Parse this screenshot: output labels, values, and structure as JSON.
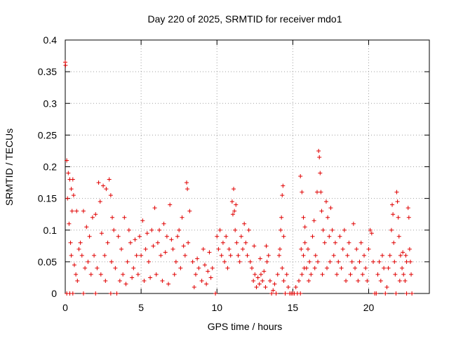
{
  "chart_data": {
    "type": "scatter",
    "title": "Day 220 of 2025, SRMTID for receiver mdo1",
    "xlabel": "GPS time / hours",
    "ylabel": "SRMTID / TECUs",
    "xlim": [
      0,
      24
    ],
    "ylim": [
      0,
      0.4
    ],
    "x_ticks": [
      0,
      5,
      10,
      15,
      20
    ],
    "x_tick_labels": [
      "0",
      "5",
      "10",
      "15",
      "20"
    ],
    "y_ticks": [
      0,
      0.05,
      0.1,
      0.15,
      0.2,
      0.25,
      0.3,
      0.35,
      0.4
    ],
    "y_tick_labels": [
      "0",
      "0.05",
      "0.1",
      "0.15",
      "0.2",
      "0.25",
      "0.3",
      "0.35",
      "0.4"
    ],
    "grid": true,
    "marker": "plus",
    "marker_color": "#e00000",
    "series": [
      {
        "name": "SRMTID",
        "points": [
          [
            0.0,
            0.365
          ],
          [
            0.02,
            0.36
          ],
          [
            0.1,
            0.0
          ],
          [
            0.3,
            0.0
          ],
          [
            0.5,
            0.0
          ],
          [
            1.2,
            0.0
          ],
          [
            2.0,
            0.0
          ],
          [
            3.0,
            0.0
          ],
          [
            3.4,
            0.0
          ],
          [
            0.1,
            0.21
          ],
          [
            0.15,
            0.15
          ],
          [
            0.2,
            0.19
          ],
          [
            0.3,
            0.18
          ],
          [
            0.4,
            0.165
          ],
          [
            0.45,
            0.13
          ],
          [
            0.5,
            0.18
          ],
          [
            0.55,
            0.155
          ],
          [
            0.25,
            0.11
          ],
          [
            0.35,
            0.08
          ],
          [
            0.4,
            0.06
          ],
          [
            0.6,
            0.045
          ],
          [
            0.7,
            0.03
          ],
          [
            0.8,
            0.02
          ],
          [
            0.9,
            0.07
          ],
          [
            1.0,
            0.08
          ],
          [
            1.1,
            0.06
          ],
          [
            1.3,
            0.04
          ],
          [
            1.5,
            0.05
          ],
          [
            1.7,
            0.03
          ],
          [
            1.9,
            0.06
          ],
          [
            0.75,
            0.13
          ],
          [
            1.2,
            0.13
          ],
          [
            1.4,
            0.105
          ],
          [
            1.6,
            0.09
          ],
          [
            1.8,
            0.12
          ],
          [
            2.0,
            0.125
          ],
          [
            2.1,
            0.04
          ],
          [
            2.2,
            0.175
          ],
          [
            2.3,
            0.145
          ],
          [
            2.4,
            0.095
          ],
          [
            2.5,
            0.17
          ],
          [
            2.6,
            0.06
          ],
          [
            2.7,
            0.165
          ],
          [
            2.8,
            0.08
          ],
          [
            2.9,
            0.18
          ],
          [
            3.0,
            0.155
          ],
          [
            3.1,
            0.12
          ],
          [
            3.2,
            0.1
          ],
          [
            3.3,
            0.04
          ],
          [
            2.35,
            0.03
          ],
          [
            2.65,
            0.02
          ],
          [
            3.05,
            0.05
          ],
          [
            3.5,
            0.09
          ],
          [
            3.7,
            0.07
          ],
          [
            3.9,
            0.12
          ],
          [
            4.1,
            0.05
          ],
          [
            4.3,
            0.08
          ],
          [
            4.5,
            0.04
          ],
          [
            4.7,
            0.06
          ],
          [
            4.9,
            0.09
          ],
          [
            5.1,
            0.115
          ],
          [
            5.3,
            0.07
          ],
          [
            5.5,
            0.05
          ],
          [
            5.7,
            0.1
          ],
          [
            5.9,
            0.135
          ],
          [
            6.1,
            0.08
          ],
          [
            6.3,
            0.06
          ],
          [
            6.5,
            0.11
          ],
          [
            6.7,
            0.09
          ],
          [
            6.9,
            0.14
          ],
          [
            7.1,
            0.07
          ],
          [
            7.3,
            0.05
          ],
          [
            7.5,
            0.1
          ],
          [
            7.7,
            0.12
          ],
          [
            7.9,
            0.06
          ],
          [
            8.0,
            0.175
          ],
          [
            8.05,
            0.165
          ],
          [
            8.1,
            0.08
          ],
          [
            8.2,
            0.13
          ],
          [
            3.6,
            0.02
          ],
          [
            3.8,
            0.03
          ],
          [
            4.0,
            0.015
          ],
          [
            4.4,
            0.025
          ],
          [
            4.8,
            0.03
          ],
          [
            5.2,
            0.02
          ],
          [
            5.6,
            0.025
          ],
          [
            6.0,
            0.03
          ],
          [
            6.4,
            0.02
          ],
          [
            6.8,
            0.015
          ],
          [
            7.2,
            0.03
          ],
          [
            7.6,
            0.04
          ],
          [
            4.2,
            0.1
          ],
          [
            4.6,
            0.085
          ],
          [
            5.0,
            0.06
          ],
          [
            5.4,
            0.095
          ],
          [
            5.8,
            0.075
          ],
          [
            6.2,
            0.1
          ],
          [
            6.6,
            0.065
          ],
          [
            7.0,
            0.085
          ],
          [
            7.4,
            0.09
          ],
          [
            7.8,
            0.075
          ],
          [
            8.4,
            0.05
          ],
          [
            8.6,
            0.03
          ],
          [
            8.8,
            0.04
          ],
          [
            9.0,
            0.02
          ],
          [
            9.2,
            0.045
          ],
          [
            9.4,
            0.035
          ],
          [
            9.5,
            0.065
          ],
          [
            9.6,
            0.025
          ],
          [
            8.7,
            0.055
          ],
          [
            9.1,
            0.07
          ],
          [
            9.3,
            0.015
          ],
          [
            8.5,
            0.01
          ],
          [
            9.7,
            0.04
          ],
          [
            9.9,
            0.0
          ],
          [
            10.0,
            0.09
          ],
          [
            10.1,
            0.07
          ],
          [
            10.2,
            0.1
          ],
          [
            10.3,
            0.06
          ],
          [
            10.4,
            0.08
          ],
          [
            10.5,
            0.05
          ],
          [
            10.6,
            0.09
          ],
          [
            10.7,
            0.04
          ],
          [
            10.8,
            0.07
          ],
          [
            10.9,
            0.06
          ],
          [
            11.0,
            0.145
          ],
          [
            11.05,
            0.125
          ],
          [
            11.1,
            0.165
          ],
          [
            11.15,
            0.13
          ],
          [
            11.2,
            0.1
          ],
          [
            11.3,
            0.08
          ],
          [
            11.4,
            0.06
          ],
          [
            11.5,
            0.05
          ],
          [
            11.6,
            0.09
          ],
          [
            11.7,
            0.07
          ],
          [
            11.8,
            0.11
          ],
          [
            11.9,
            0.08
          ],
          [
            12.0,
            0.06
          ],
          [
            12.1,
            0.1
          ],
          [
            11.25,
            0.14
          ],
          [
            12.2,
            0.05
          ],
          [
            12.3,
            0.04
          ],
          [
            12.4,
            0.02
          ],
          [
            12.5,
            0.03
          ],
          [
            12.6,
            0.01
          ],
          [
            12.7,
            0.025
          ],
          [
            12.8,
            0.015
          ],
          [
            12.9,
            0.03
          ],
          [
            13.0,
            0.02
          ],
          [
            13.1,
            0.035
          ],
          [
            13.2,
            0.01
          ],
          [
            13.3,
            0.05
          ],
          [
            13.4,
            0.06
          ],
          [
            13.5,
            0.02
          ],
          [
            13.6,
            0.0
          ],
          [
            13.7,
            0.005
          ],
          [
            13.8,
            0.015
          ],
          [
            13.9,
            0.0
          ],
          [
            14.0,
            0.03
          ],
          [
            14.1,
            0.06
          ],
          [
            14.2,
            0.1
          ],
          [
            14.3,
            0.04
          ],
          [
            14.4,
            0.02
          ],
          [
            14.5,
            0.0
          ],
          [
            14.6,
            0.03
          ],
          [
            14.7,
            0.01
          ],
          [
            14.3,
            0.155
          ],
          [
            14.35,
            0.17
          ],
          [
            14.25,
            0.12
          ],
          [
            14.4,
            0.09
          ],
          [
            14.15,
            0.07
          ],
          [
            13.25,
            0.075
          ],
          [
            12.45,
            0.075
          ],
          [
            12.85,
            0.055
          ],
          [
            14.8,
            0.0
          ],
          [
            14.9,
            0.0
          ],
          [
            15.0,
            0.0
          ],
          [
            15.1,
            0.0
          ],
          [
            15.2,
            0.01
          ],
          [
            15.3,
            0.0
          ],
          [
            15.4,
            0.02
          ],
          [
            15.5,
            0.0
          ],
          [
            15.6,
            0.03
          ],
          [
            15.7,
            0.06
          ],
          [
            15.8,
            0.08
          ],
          [
            15.9,
            0.04
          ],
          [
            16.0,
            0.07
          ],
          [
            16.1,
            0.05
          ],
          [
            15.5,
            0.185
          ],
          [
            15.6,
            0.16
          ],
          [
            15.7,
            0.12
          ],
          [
            15.8,
            0.105
          ],
          [
            15.55,
            0.07
          ],
          [
            15.75,
            0.04
          ],
          [
            16.05,
            0.02
          ],
          [
            16.2,
            0.03
          ],
          [
            16.3,
            0.09
          ],
          [
            16.4,
            0.115
          ],
          [
            16.5,
            0.06
          ],
          [
            16.6,
            0.16
          ],
          [
            16.7,
            0.225
          ],
          [
            16.75,
            0.215
          ],
          [
            16.8,
            0.19
          ],
          [
            16.85,
            0.16
          ],
          [
            16.9,
            0.13
          ],
          [
            17.0,
            0.1
          ],
          [
            17.1,
            0.08
          ],
          [
            17.2,
            0.145
          ],
          [
            17.3,
            0.12
          ],
          [
            17.4,
            0.09
          ],
          [
            17.5,
            0.135
          ],
          [
            16.45,
            0.04
          ],
          [
            16.65,
            0.05
          ],
          [
            16.95,
            0.03
          ],
          [
            17.25,
            0.04
          ],
          [
            17.45,
            0.05
          ],
          [
            17.6,
            0.1
          ],
          [
            17.7,
            0.06
          ],
          [
            17.8,
            0.08
          ],
          [
            17.9,
            0.03
          ],
          [
            18.0,
            0.05
          ],
          [
            18.1,
            0.09
          ],
          [
            18.2,
            0.04
          ],
          [
            18.3,
            0.07
          ],
          [
            18.4,
            0.1
          ],
          [
            18.5,
            0.02
          ],
          [
            18.6,
            0.06
          ],
          [
            18.7,
            0.08
          ],
          [
            18.8,
            0.03
          ],
          [
            18.9,
            0.05
          ],
          [
            19.0,
            0.11
          ],
          [
            19.1,
            0.04
          ],
          [
            19.2,
            0.07
          ],
          [
            19.3,
            0.02
          ],
          [
            19.4,
            0.05
          ],
          [
            19.5,
            0.08
          ],
          [
            19.6,
            0.03
          ],
          [
            19.7,
            0.06
          ],
          [
            19.8,
            0.04
          ],
          [
            19.9,
            0.02
          ],
          [
            20.0,
            0.07
          ],
          [
            20.1,
            0.1
          ],
          [
            20.2,
            0.095
          ],
          [
            20.3,
            0.05
          ],
          [
            20.4,
            0.0
          ],
          [
            20.5,
            0.0
          ],
          [
            20.6,
            0.03
          ],
          [
            20.7,
            0.05
          ],
          [
            20.8,
            0.02
          ],
          [
            20.9,
            0.06
          ],
          [
            21.0,
            0.04
          ],
          [
            21.1,
            0.0
          ],
          [
            21.2,
            0.01
          ],
          [
            21.3,
            0.04
          ],
          [
            21.4,
            0.06
          ],
          [
            21.5,
            0.1
          ],
          [
            21.55,
            0.14
          ],
          [
            21.6,
            0.125
          ],
          [
            21.65,
            0.08
          ],
          [
            21.7,
            0.05
          ],
          [
            21.75,
            0.03
          ],
          [
            21.85,
            0.16
          ],
          [
            21.9,
            0.145
          ],
          [
            21.95,
            0.12
          ],
          [
            22.0,
            0.09
          ],
          [
            22.1,
            0.06
          ],
          [
            22.2,
            0.04
          ],
          [
            22.3,
            0.03
          ],
          [
            22.4,
            0.02
          ],
          [
            22.5,
            0.05
          ],
          [
            22.6,
            0.135
          ],
          [
            22.65,
            0.12
          ],
          [
            22.7,
            0.07
          ],
          [
            22.75,
            0.05
          ],
          [
            22.8,
            0.03
          ],
          [
            22.85,
            0.0
          ],
          [
            22.5,
            0.0
          ],
          [
            21.8,
            0.0
          ],
          [
            22.05,
            0.02
          ],
          [
            22.25,
            0.065
          ],
          [
            22.45,
            0.06
          ]
        ]
      }
    ]
  }
}
